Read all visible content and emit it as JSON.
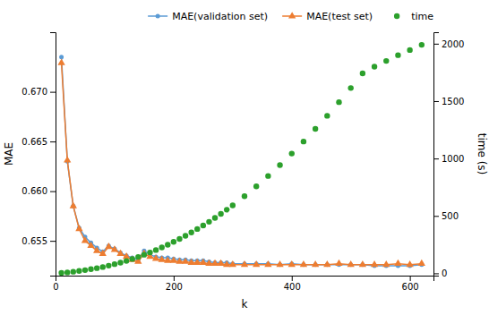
{
  "chart_data": {
    "type": "line",
    "xlabel": "k",
    "ylabel": "MAE",
    "y2label": "time (s)",
    "x": [
      10,
      20,
      30,
      40,
      50,
      60,
      70,
      80,
      90,
      100,
      110,
      120,
      130,
      140,
      150,
      160,
      170,
      180,
      190,
      200,
      210,
      220,
      230,
      240,
      250,
      260,
      270,
      280,
      290,
      300,
      320,
      340,
      360,
      380,
      400,
      420,
      440,
      460,
      480,
      500,
      520,
      540,
      560,
      580,
      600,
      620
    ],
    "series": [
      {
        "name": "MAE(validation set)",
        "color": "#5b9bd5",
        "marker": "circle",
        "values": [
          0.6735,
          0.663,
          0.6585,
          0.6563,
          0.6554,
          0.6548,
          0.6543,
          0.6539,
          0.6545,
          0.6542,
          0.6538,
          0.6535,
          0.6533,
          0.6531,
          0.654,
          0.6536,
          0.6534,
          0.6533,
          0.6533,
          0.6532,
          0.6531,
          0.6531,
          0.653,
          0.653,
          0.653,
          0.6529,
          0.6528,
          0.6528,
          0.6528,
          0.6527,
          0.6527,
          0.6527,
          0.6527,
          0.6526,
          0.6527,
          0.6526,
          0.6526,
          0.6526,
          0.6526,
          0.6526,
          0.6526,
          0.6525,
          0.6525,
          0.6525,
          0.6525,
          0.6526
        ]
      },
      {
        "name": "MAE(test set)",
        "color": "#ed7d31",
        "marker": "triangle",
        "values": [
          0.6729,
          0.6631,
          0.6585,
          0.6562,
          0.655,
          0.6545,
          0.654,
          0.6537,
          0.6544,
          0.6541,
          0.6537,
          0.6534,
          0.6531,
          0.6529,
          0.6537,
          0.6534,
          0.6532,
          0.6531,
          0.653,
          0.653,
          0.6529,
          0.6529,
          0.6528,
          0.6528,
          0.6528,
          0.6527,
          0.6527,
          0.6527,
          0.6526,
          0.6526,
          0.6526,
          0.6526,
          0.6526,
          0.6526,
          0.6526,
          0.6526,
          0.6526,
          0.6526,
          0.6527,
          0.6526,
          0.6526,
          0.6526,
          0.6526,
          0.6527,
          0.6526,
          0.6527
        ]
      },
      {
        "name": "time",
        "color": "#2ca02c",
        "marker": "circle",
        "type": "scatter",
        "axis": "y2",
        "values": [
          3,
          8,
          14,
          21,
          28,
          36,
          45,
          55,
          67,
          80,
          93,
          108,
          125,
          143,
          162,
          182,
          203,
          225,
          249,
          274,
          300,
          327,
          356,
          386,
          417,
          449,
          483,
          518,
          554,
          592,
          672,
          757,
          848,
          943,
          1043,
          1148,
          1258,
          1372,
          1491,
          1614,
          1741,
          1800,
          1850,
          1900,
          1945,
          1990
        ]
      }
    ],
    "xlim": [
      0,
      640
    ],
    "xticks": [
      0,
      200,
      400,
      600
    ],
    "ylim": [
      0.6515,
      0.676
    ],
    "yticks": [
      0.655,
      {
        "value": 0.66,
        "label": "0.660"
      },
      0.665,
      {
        "value": 0.67,
        "label": "0.670"
      }
    ],
    "y2lim": [
      -20,
      2100
    ],
    "y2ticks": [
      0,
      500,
      1000,
      1500,
      2000
    ],
    "legend": "upper right",
    "grid": false
  }
}
